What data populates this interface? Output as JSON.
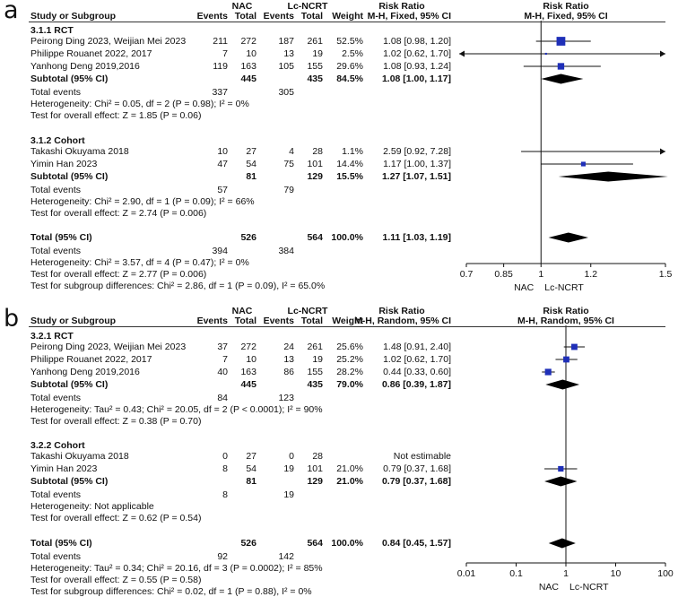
{
  "chart_data": [
    {
      "type": "forest",
      "panel": "a",
      "header": {
        "study_col": "Study or Subgroup",
        "group1": "NAC",
        "group2": "Lc-NCRT",
        "events": "Events",
        "total": "Total",
        "weight": "Weight",
        "rr_title": "Risk Ratio",
        "rr_method": "M-H, Fixed, 95% CI"
      },
      "subgroups": [
        {
          "title": "3.1.1 RCT",
          "studies": [
            {
              "name": "Peirong Ding 2023, Weijian Mei 2023",
              "e1": "211",
              "n1": "272",
              "e2": "187",
              "n2": "261",
              "weight": "52.5%",
              "ci_text": "1.08 [0.98, 1.20]",
              "rr": 1.08,
              "lo": 0.98,
              "hi": 1.2,
              "w": 52.5
            },
            {
              "name": "Philippe Rouanet 2022, 2017",
              "e1": "7",
              "n1": "10",
              "e2": "13",
              "n2": "19",
              "weight": "2.5%",
              "ci_text": "1.02 [0.62, 1.70]",
              "rr": 1.02,
              "lo": 0.62,
              "hi": 1.7,
              "w": 2.5
            },
            {
              "name": "Yanhong Deng 2019,2016",
              "e1": "119",
              "n1": "163",
              "e2": "105",
              "n2": "155",
              "weight": "29.6%",
              "ci_text": "1.08 [0.93, 1.24]",
              "rr": 1.08,
              "lo": 0.93,
              "hi": 1.24,
              "w": 29.6
            }
          ],
          "subtotal": {
            "label": "Subtotal (95% CI)",
            "n1": "445",
            "n2": "435",
            "weight": "84.5%",
            "ci_text": "1.08 [1.00, 1.17]",
            "rr": 1.08,
            "lo": 1.0,
            "hi": 1.17
          },
          "total_events": {
            "label": "Total events",
            "e1": "337",
            "e2": "305"
          },
          "heterogeneity": "Heterogeneity: Chi² = 0.05, df = 2 (P = 0.98); I² = 0%",
          "overall": "Test for overall effect: Z = 1.85 (P = 0.06)"
        },
        {
          "title": "3.1.2 Cohort",
          "studies": [
            {
              "name": "Takashi Okuyama 2018",
              "e1": "10",
              "n1": "27",
              "e2": "4",
              "n2": "28",
              "weight": "1.1%",
              "ci_text": "2.59 [0.92, 7.28]",
              "rr": 2.59,
              "lo": 0.92,
              "hi": 7.28,
              "w": 1.1
            },
            {
              "name": "Yimin Han 2023",
              "e1": "47",
              "n1": "54",
              "e2": "75",
              "n2": "101",
              "weight": "14.4%",
              "ci_text": "1.17 [1.00, 1.37]",
              "rr": 1.17,
              "lo": 1.0,
              "hi": 1.37,
              "w": 14.4
            }
          ],
          "subtotal": {
            "label": "Subtotal (95% CI)",
            "n1": "81",
            "n2": "129",
            "weight": "15.5%",
            "ci_text": "1.27 [1.07, 1.51]",
            "rr": 1.27,
            "lo": 1.07,
            "hi": 1.51
          },
          "total_events": {
            "label": "Total events",
            "e1": "57",
            "e2": "79"
          },
          "heterogeneity": "Heterogeneity: Chi² = 2.90, df = 1 (P = 0.09); I² = 66%",
          "overall": "Test for overall effect: Z = 2.74 (P = 0.006)"
        }
      ],
      "total": {
        "label": "Total (95% CI)",
        "n1": "526",
        "n2": "564",
        "weight": "100.0%",
        "ci_text": "1.11 [1.03, 1.19]",
        "rr": 1.11,
        "lo": 1.03,
        "hi": 1.19
      },
      "total_events": {
        "label": "Total events",
        "e1": "394",
        "e2": "384"
      },
      "heterogeneity": "Heterogeneity: Chi² = 3.57, df = 4 (P = 0.47); I² = 0%",
      "overall": "Test for overall effect: Z = 2.77 (P = 0.006)",
      "subgroup_diff": "Test for subgroup differences: Chi² = 2.86, df = 1 (P = 0.09), I² = 65.0%",
      "axis": {
        "scale": "linear",
        "xlim": [
          0.7,
          1.5
        ],
        "ticks": [
          0.7,
          0.85,
          1,
          1.2,
          1.5
        ],
        "tick_labels": [
          "0.7",
          "0.85",
          "1",
          "1.2",
          "1.5"
        ],
        "null_value": 1
      },
      "favours": {
        "left": "NAC",
        "right": "Lc-NCRT"
      }
    },
    {
      "type": "forest",
      "panel": "b",
      "header": {
        "study_col": "Study or Subgroup",
        "group1": "NAC",
        "group2": "Lc-NCRT",
        "events": "Events",
        "total": "Total",
        "weight": "Weight",
        "rr_title": "Risk Ratio",
        "rr_method": "M-H, Random, 95% CI"
      },
      "subgroups": [
        {
          "title": "3.2.1 RCT",
          "studies": [
            {
              "name": "Peirong Ding 2023, Weijian Mei 2023",
              "e1": "37",
              "n1": "272",
              "e2": "24",
              "n2": "261",
              "weight": "25.6%",
              "ci_text": "1.48 [0.91, 2.40]",
              "rr": 1.48,
              "lo": 0.91,
              "hi": 2.4,
              "w": 25.6
            },
            {
              "name": "Philippe Rouanet 2022, 2017",
              "e1": "7",
              "n1": "10",
              "e2": "13",
              "n2": "19",
              "weight": "25.2%",
              "ci_text": "1.02 [0.62, 1.70]",
              "rr": 1.02,
              "lo": 0.62,
              "hi": 1.7,
              "w": 25.2
            },
            {
              "name": "Yanhong Deng 2019,2016",
              "e1": "40",
              "n1": "163",
              "e2": "86",
              "n2": "155",
              "weight": "28.2%",
              "ci_text": "0.44 [0.33, 0.60]",
              "rr": 0.44,
              "lo": 0.33,
              "hi": 0.6,
              "w": 28.2
            }
          ],
          "subtotal": {
            "label": "Subtotal (95% CI)",
            "n1": "445",
            "n2": "435",
            "weight": "79.0%",
            "ci_text": "0.86 [0.39, 1.87]",
            "rr": 0.86,
            "lo": 0.39,
            "hi": 1.87
          },
          "total_events": {
            "label": "Total events",
            "e1": "84",
            "e2": "123"
          },
          "heterogeneity": "Heterogeneity: Tau² = 0.43; Chi² = 20.05, df = 2 (P < 0.0001); I² = 90%",
          "overall": "Test for overall effect: Z = 0.38 (P = 0.70)"
        },
        {
          "title": "3.2.2 Cohort",
          "studies": [
            {
              "name": "Takashi Okuyama 2018",
              "e1": "0",
              "n1": "27",
              "e2": "0",
              "n2": "28",
              "weight": "",
              "ci_text": "Not estimable",
              "rr": null,
              "lo": null,
              "hi": null,
              "w": 0
            },
            {
              "name": "Yimin Han 2023",
              "e1": "8",
              "n1": "54",
              "e2": "19",
              "n2": "101",
              "weight": "21.0%",
              "ci_text": "0.79 [0.37, 1.68]",
              "rr": 0.79,
              "lo": 0.37,
              "hi": 1.68,
              "w": 21.0
            }
          ],
          "subtotal": {
            "label": "Subtotal (95% CI)",
            "n1": "81",
            "n2": "129",
            "weight": "21.0%",
            "ci_text": "0.79 [0.37, 1.68]",
            "rr": 0.79,
            "lo": 0.37,
            "hi": 1.68
          },
          "total_events": {
            "label": "Total events",
            "e1": "8",
            "e2": "19"
          },
          "heterogeneity": "Heterogeneity: Not applicable",
          "overall": "Test for overall effect: Z = 0.62 (P = 0.54)"
        }
      ],
      "total": {
        "label": "Total (95% CI)",
        "n1": "526",
        "n2": "564",
        "weight": "100.0%",
        "ci_text": "0.84 [0.45, 1.57]",
        "rr": 0.84,
        "lo": 0.45,
        "hi": 1.57
      },
      "total_events": {
        "label": "Total events",
        "e1": "92",
        "e2": "142"
      },
      "heterogeneity": "Heterogeneity: Tau² = 0.34; Chi² = 20.16, df = 3 (P = 0.0002); I² = 85%",
      "overall": "Test for overall effect: Z = 0.55 (P = 0.58)",
      "subgroup_diff": "Test for subgroup differences: Chi² = 0.02, df = 1 (P = 0.88), I² = 0%",
      "axis": {
        "scale": "log",
        "xlim": [
          0.01,
          100
        ],
        "ticks": [
          0.01,
          0.1,
          1,
          10,
          100
        ],
        "tick_labels": [
          "0.01",
          "0.1",
          "1",
          "10",
          "100"
        ],
        "null_value": 1
      },
      "favours": {
        "left": "NAC",
        "right": "Lc-NCRT"
      }
    }
  ],
  "colors": {
    "marker": "#1f2fb8",
    "diamond": "#000000",
    "text": "#111111"
  }
}
